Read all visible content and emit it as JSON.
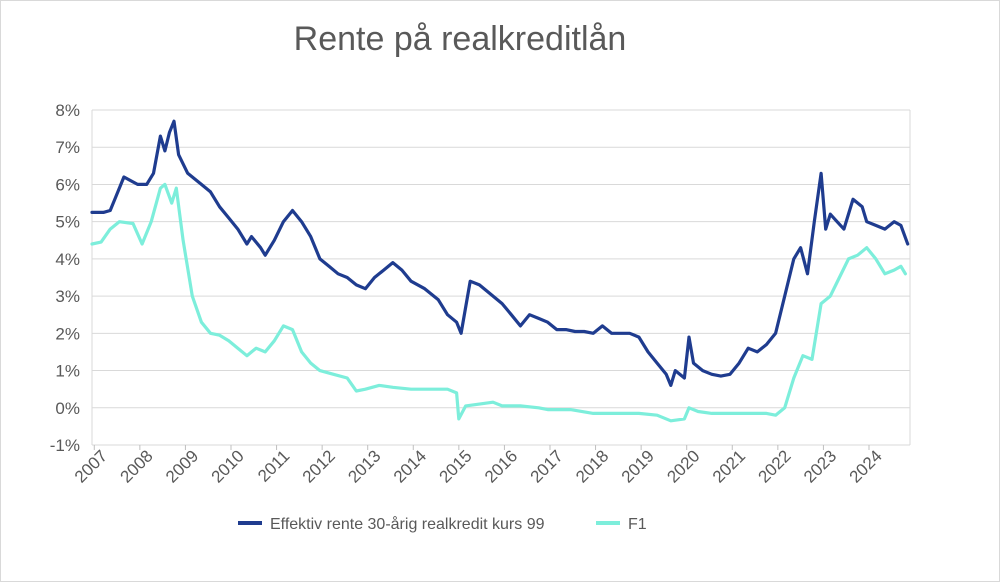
{
  "chart_data": {
    "type": "line",
    "title": "Rente på realkreditlån",
    "xlabel": "",
    "ylabel": "",
    "xlim": [
      2007.0,
      2024.95
    ],
    "ylim": [
      -1,
      8
    ],
    "y_ticks": [
      -1,
      0,
      1,
      2,
      3,
      4,
      5,
      6,
      7,
      8
    ],
    "y_tick_labels": [
      "-1%",
      "0%",
      "1%",
      "2%",
      "3%",
      "4%",
      "5%",
      "6%",
      "7%",
      "8%"
    ],
    "x_tick_labels": [
      "2007",
      "2008",
      "2009",
      "2010",
      "2011",
      "2012",
      "2013",
      "2014",
      "2015",
      "2016",
      "2017",
      "2018",
      "2019",
      "2020",
      "2021",
      "2022",
      "2023",
      "2024"
    ],
    "grid": "horizontal",
    "legend": "bottom",
    "series": [
      {
        "name": "Effektiv rente 30-årig realkredit kurs 99",
        "color": "#1f3c8f",
        "x": [
          2007.0,
          2007.25,
          2007.4,
          2007.5,
          2007.7,
          2008.0,
          2008.2,
          2008.35,
          2008.5,
          2008.6,
          2008.7,
          2008.8,
          2008.9,
          2009.1,
          2009.4,
          2009.6,
          2009.8,
          2010.0,
          2010.2,
          2010.4,
          2010.5,
          2010.7,
          2010.8,
          2011.0,
          2011.2,
          2011.4,
          2011.6,
          2011.8,
          2012.0,
          2012.2,
          2012.4,
          2012.6,
          2012.8,
          2013.0,
          2013.2,
          2013.4,
          2013.6,
          2013.8,
          2014.0,
          2014.3,
          2014.6,
          2014.8,
          2015.0,
          2015.1,
          2015.3,
          2015.5,
          2015.7,
          2016.0,
          2016.2,
          2016.4,
          2016.6,
          2016.8,
          2017.0,
          2017.2,
          2017.4,
          2017.6,
          2017.8,
          2018.0,
          2018.2,
          2018.4,
          2018.6,
          2018.8,
          2019.0,
          2019.2,
          2019.4,
          2019.6,
          2019.7,
          2019.8,
          2020.0,
          2020.1,
          2020.2,
          2020.4,
          2020.6,
          2020.8,
          2021.0,
          2021.2,
          2021.4,
          2021.6,
          2021.8,
          2022.0,
          2022.2,
          2022.4,
          2022.55,
          2022.7,
          2022.85,
          2023.0,
          2023.1,
          2023.2,
          2023.35,
          2023.5,
          2023.7,
          2023.9,
          2024.0,
          2024.2,
          2024.4,
          2024.6,
          2024.75,
          2024.9
        ],
        "y": [
          5.25,
          5.25,
          5.3,
          5.6,
          6.2,
          6.0,
          6.0,
          6.3,
          7.3,
          6.9,
          7.4,
          7.7,
          6.8,
          6.3,
          6.0,
          5.8,
          5.4,
          5.1,
          4.8,
          4.4,
          4.6,
          4.3,
          4.1,
          4.5,
          5.0,
          5.3,
          5.0,
          4.6,
          4.0,
          3.8,
          3.6,
          3.5,
          3.3,
          3.2,
          3.5,
          3.7,
          3.9,
          3.7,
          3.4,
          3.2,
          2.9,
          2.5,
          2.3,
          2.0,
          3.4,
          3.3,
          3.1,
          2.8,
          2.5,
          2.2,
          2.5,
          2.4,
          2.3,
          2.1,
          2.1,
          2.05,
          2.05,
          2.0,
          2.2,
          2.0,
          2.0,
          2.0,
          1.9,
          1.5,
          1.2,
          0.9,
          0.6,
          1.0,
          0.8,
          1.9,
          1.2,
          1.0,
          0.9,
          0.85,
          0.9,
          1.2,
          1.6,
          1.5,
          1.7,
          2.0,
          3.0,
          4.0,
          4.3,
          3.6,
          5.0,
          6.3,
          4.8,
          5.2,
          5.0,
          4.8,
          5.6,
          5.4,
          5.0,
          4.9,
          4.8,
          5.0,
          4.9,
          4.4
        ]
      },
      {
        "name": "F1",
        "color": "#7deedb",
        "x": [
          2007.0,
          2007.2,
          2007.4,
          2007.6,
          2007.9,
          2008.1,
          2008.3,
          2008.5,
          2008.6,
          2008.75,
          2008.85,
          2009.0,
          2009.2,
          2009.4,
          2009.6,
          2009.8,
          2010.0,
          2010.2,
          2010.4,
          2010.6,
          2010.8,
          2011.0,
          2011.2,
          2011.4,
          2011.6,
          2011.8,
          2012.0,
          2012.3,
          2012.6,
          2012.8,
          2013.0,
          2013.3,
          2013.6,
          2014.0,
          2014.4,
          2014.8,
          2015.0,
          2015.05,
          2015.2,
          2015.5,
          2015.8,
          2016.0,
          2016.4,
          2016.8,
          2017.0,
          2017.5,
          2018.0,
          2018.5,
          2019.0,
          2019.4,
          2019.7,
          2020.0,
          2020.1,
          2020.3,
          2020.6,
          2021.0,
          2021.4,
          2021.8,
          2022.0,
          2022.2,
          2022.4,
          2022.6,
          2022.8,
          2023.0,
          2023.2,
          2023.4,
          2023.6,
          2023.8,
          2024.0,
          2024.2,
          2024.4,
          2024.6,
          2024.75,
          2024.85
        ],
        "y": [
          4.4,
          4.45,
          4.8,
          5.0,
          4.95,
          4.4,
          5.0,
          5.9,
          6.0,
          5.5,
          5.9,
          4.5,
          3.0,
          2.3,
          2.0,
          1.95,
          1.8,
          1.6,
          1.4,
          1.6,
          1.5,
          1.8,
          2.2,
          2.1,
          1.5,
          1.2,
          1.0,
          0.9,
          0.8,
          0.45,
          0.5,
          0.6,
          0.55,
          0.5,
          0.5,
          0.5,
          0.4,
          -0.3,
          0.05,
          0.1,
          0.15,
          0.05,
          0.05,
          0.0,
          -0.05,
          -0.05,
          -0.15,
          -0.15,
          -0.15,
          -0.2,
          -0.35,
          -0.3,
          0.0,
          -0.1,
          -0.15,
          -0.15,
          -0.15,
          -0.15,
          -0.2,
          0.0,
          0.8,
          1.4,
          1.3,
          2.8,
          3.0,
          3.5,
          4.0,
          4.1,
          4.3,
          4.0,
          3.6,
          3.7,
          3.8,
          3.6
        ]
      }
    ]
  }
}
